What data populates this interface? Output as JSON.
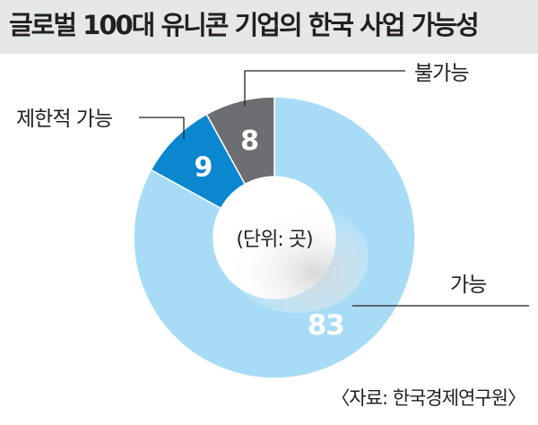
{
  "title": "글로벌 100대 유니콘 기업의 한국 사업 가능성",
  "unit_note": "(단위: 곳)",
  "source": "〈자료: 한국경제연구원〉",
  "chart_data": {
    "type": "pie",
    "title": "글로벌 100대 유니콘 기업의 한국 사업 가능성",
    "unit": "곳",
    "slices": [
      {
        "label": "가능",
        "value": 83,
        "color": "#a8dcf6"
      },
      {
        "label": "제한적 가능",
        "value": 9,
        "color": "#0a87cf"
      },
      {
        "label": "불가능",
        "value": 8,
        "color": "#6d6e71"
      }
    ]
  }
}
